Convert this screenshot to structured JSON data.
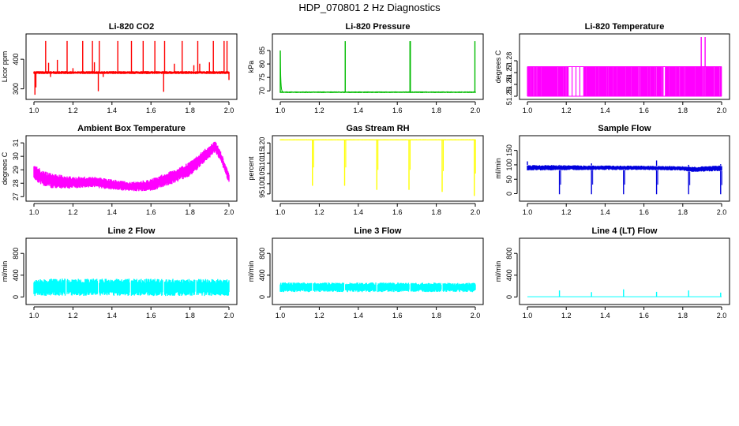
{
  "figure_title": "HDP_070801 2 Hz Diagnostics",
  "chart_data": [
    {
      "type": "line",
      "title": "Li-820 CO2",
      "ylabel": "Licor ppm",
      "color": "#ff0000",
      "xlim": [
        1.0,
        2.0
      ],
      "ylim": [
        275,
        475
      ],
      "x_ticks": [
        1.0,
        1.2,
        1.4,
        1.6,
        1.8,
        2.0
      ],
      "x_tick_labels": [
        "1.0",
        "1.2",
        "1.4",
        "1.6",
        "1.8",
        "2.0"
      ],
      "y_ticks": [
        300,
        400
      ],
      "y_tick_labels": [
        "300",
        "400"
      ],
      "baseline": 355,
      "band": [
        {
          "x": 1.0,
          "low": 350,
          "high": 360
        },
        {
          "x": 2.0,
          "low": 350,
          "high": 360
        }
      ],
      "spikes": [
        {
          "x": 1.005,
          "y": 280
        },
        {
          "x": 1.01,
          "y": 305
        },
        {
          "x": 1.06,
          "y": 462
        },
        {
          "x": 1.075,
          "y": 388
        },
        {
          "x": 1.085,
          "y": 340
        },
        {
          "x": 1.12,
          "y": 398
        },
        {
          "x": 1.17,
          "y": 462
        },
        {
          "x": 1.2,
          "y": 370
        },
        {
          "x": 1.25,
          "y": 462
        },
        {
          "x": 1.3,
          "y": 462
        },
        {
          "x": 1.31,
          "y": 390
        },
        {
          "x": 1.33,
          "y": 292
        },
        {
          "x": 1.335,
          "y": 462
        },
        {
          "x": 1.355,
          "y": 340
        },
        {
          "x": 1.43,
          "y": 462
        },
        {
          "x": 1.5,
          "y": 462
        },
        {
          "x": 1.56,
          "y": 462
        },
        {
          "x": 1.62,
          "y": 462
        },
        {
          "x": 1.665,
          "y": 290
        },
        {
          "x": 1.67,
          "y": 462
        },
        {
          "x": 1.72,
          "y": 385
        },
        {
          "x": 1.76,
          "y": 462
        },
        {
          "x": 1.82,
          "y": 380
        },
        {
          "x": 1.84,
          "y": 462
        },
        {
          "x": 1.85,
          "y": 385
        },
        {
          "x": 1.9,
          "y": 390
        },
        {
          "x": 1.92,
          "y": 462
        },
        {
          "x": 1.975,
          "y": 462
        },
        {
          "x": 1.99,
          "y": 462
        },
        {
          "x": 2.0,
          "y": 330
        }
      ]
    },
    {
      "type": "line",
      "title": "Li-820 Pressure",
      "ylabel": "kPa",
      "color": "#00bb00",
      "xlim": [
        1.0,
        2.0
      ],
      "ylim": [
        68,
        90
      ],
      "x_ticks": [
        1.0,
        1.2,
        1.4,
        1.6,
        1.8,
        2.0
      ],
      "x_tick_labels": [
        "1.0",
        "1.2",
        "1.4",
        "1.6",
        "1.8",
        "2.0"
      ],
      "y_ticks": [
        70,
        75,
        80,
        85
      ],
      "y_tick_labels": [
        "70",
        "75",
        "80",
        "85"
      ],
      "baseline": 69.5,
      "band": [
        {
          "x": 1.0,
          "low": 69.2,
          "high": 69.8
        },
        {
          "x": 2.0,
          "low": 69.2,
          "high": 69.8
        }
      ],
      "spikes": [
        {
          "x": 1.0,
          "y": 85
        },
        {
          "x": 1.333,
          "y": 88.5
        },
        {
          "x": 1.665,
          "y": 88.5
        },
        {
          "x": 1.667,
          "y": 88.5
        },
        {
          "x": 1.998,
          "y": 88.5
        }
      ],
      "decays": [
        {
          "x": 1.0,
          "from": 85,
          "to": 69.6,
          "width": 0.012
        }
      ]
    },
    {
      "type": "line",
      "title": "Li-820 Temperature",
      "ylabel": "degrees C",
      "color": "#ff00ff",
      "xlim": [
        1.0,
        2.0
      ],
      "ylim": [
        51.25,
        51.3
      ],
      "x_ticks": [
        1.0,
        1.2,
        1.4,
        1.6,
        1.8,
        2.0
      ],
      "x_tick_labels": [
        "1.0",
        "1.2",
        "1.4",
        "1.6",
        "1.8",
        "2.0"
      ],
      "y_ticks": [
        51.25,
        51.26,
        51.27,
        51.28
      ],
      "y_tick_labels": [
        "51.25",
        "51.26",
        "51.27",
        "51.28"
      ],
      "levels": [
        51.25,
        51.275
      ],
      "dense_intervals": [
        [
          1.0,
          1.21
        ],
        [
          1.29,
          1.7
        ],
        [
          1.71,
          2.0
        ]
      ],
      "sparse_interval": [
        1.21,
        1.29
      ],
      "high_spikes": [
        {
          "x": 1.895,
          "y": 51.3
        },
        {
          "x": 1.915,
          "y": 51.3
        }
      ]
    },
    {
      "type": "line",
      "title": "Ambient Box Temperature",
      "ylabel": "degrees C",
      "color": "#ff00ff",
      "xlim": [
        1.0,
        2.0
      ],
      "ylim": [
        26.9,
        31.3
      ],
      "x_ticks": [
        1.0,
        1.2,
        1.4,
        1.6,
        1.8,
        2.0
      ],
      "x_tick_labels": [
        "1.0",
        "1.2",
        "1.4",
        "1.6",
        "1.8",
        "2.0"
      ],
      "y_ticks": [
        27,
        28,
        29,
        30,
        31
      ],
      "y_tick_labels": [
        "27",
        "28",
        "29",
        "30",
        "31"
      ],
      "band": [
        {
          "x": 1.0,
          "low": 28.2,
          "high": 29.4
        },
        {
          "x": 1.05,
          "low": 27.8,
          "high": 28.9
        },
        {
          "x": 1.1,
          "low": 27.6,
          "high": 28.7
        },
        {
          "x": 1.2,
          "low": 27.6,
          "high": 28.5
        },
        {
          "x": 1.3,
          "low": 27.7,
          "high": 28.5
        },
        {
          "x": 1.4,
          "low": 27.5,
          "high": 28.3
        },
        {
          "x": 1.5,
          "low": 27.4,
          "high": 28.1
        },
        {
          "x": 1.6,
          "low": 27.4,
          "high": 28.3
        },
        {
          "x": 1.7,
          "low": 27.9,
          "high": 28.9
        },
        {
          "x": 1.8,
          "low": 28.5,
          "high": 29.6
        },
        {
          "x": 1.88,
          "low": 29.6,
          "high": 30.6
        },
        {
          "x": 1.93,
          "low": 30.3,
          "high": 31.2
        },
        {
          "x": 1.96,
          "low": 29.5,
          "high": 30.3
        },
        {
          "x": 2.0,
          "low": 28.0,
          "high": 28.8
        }
      ]
    },
    {
      "type": "line",
      "title": "Gas Stream RH",
      "ylabel": "percent",
      "color": "#ffff00",
      "xlim": [
        1.0,
        2.0
      ],
      "ylim": [
        93,
        122
      ],
      "x_ticks": [
        1.0,
        1.2,
        1.4,
        1.6,
        1.8,
        2.0
      ],
      "x_tick_labels": [
        "1.0",
        "1.2",
        "1.4",
        "1.6",
        "1.8",
        "2.0"
      ],
      "y_ticks": [
        95,
        100,
        105,
        110,
        115,
        120
      ],
      "y_tick_labels": [
        "95",
        "100",
        "105",
        "110",
        "115",
        "120"
      ],
      "baseline": 121.5,
      "band": [
        {
          "x": 1.0,
          "low": 121.3,
          "high": 121.8
        },
        {
          "x": 2.0,
          "low": 121.3,
          "high": 121.8
        }
      ],
      "dips": [
        {
          "x": 1.165,
          "y": 99
        },
        {
          "x": 1.33,
          "y": 99
        },
        {
          "x": 1.495,
          "y": 97
        },
        {
          "x": 1.66,
          "y": 97
        },
        {
          "x": 1.83,
          "y": 96
        },
        {
          "x": 1.995,
          "y": 94
        }
      ]
    },
    {
      "type": "line",
      "title": "Sample Flow",
      "ylabel": "ml/min",
      "color": "#0000dd",
      "xlim": [
        1.0,
        2.0
      ],
      "ylim": [
        -15,
        190
      ],
      "x_ticks": [
        1.0,
        1.2,
        1.4,
        1.6,
        1.8,
        2.0
      ],
      "x_tick_labels": [
        "1.0",
        "1.2",
        "1.4",
        "1.6",
        "1.8",
        "2.0"
      ],
      "y_ticks": [
        0,
        50,
        100,
        150
      ],
      "y_tick_labels": [
        "0",
        "50",
        "100",
        "150"
      ],
      "band": [
        {
          "x": 1.0,
          "low": 80,
          "high": 100
        },
        {
          "x": 1.3,
          "low": 82,
          "high": 98
        },
        {
          "x": 1.6,
          "low": 82,
          "high": 97
        },
        {
          "x": 1.8,
          "low": 80,
          "high": 95
        },
        {
          "x": 1.85,
          "low": 75,
          "high": 93
        },
        {
          "x": 2.0,
          "low": 78,
          "high": 98
        }
      ],
      "dips": [
        {
          "x": 1.165,
          "y": -2
        },
        {
          "x": 1.33,
          "y": -2
        },
        {
          "x": 1.495,
          "y": -2
        },
        {
          "x": 1.665,
          "y": -2
        },
        {
          "x": 1.83,
          "y": -2
        },
        {
          "x": 1.995,
          "y": -2
        }
      ],
      "spikes": [
        {
          "x": 1.0,
          "y": 112
        },
        {
          "x": 1.165,
          "y": 100
        },
        {
          "x": 1.33,
          "y": 105
        },
        {
          "x": 1.665,
          "y": 115
        },
        {
          "x": 1.83,
          "y": 100
        },
        {
          "x": 1.995,
          "y": 102
        }
      ]
    },
    {
      "type": "line",
      "title": "Line 2 Flow",
      "ylabel": "ml/min",
      "color": "#00ffff",
      "xlim": [
        1.0,
        2.0
      ],
      "ylim": [
        -80,
        1020
      ],
      "x_ticks": [
        1.0,
        1.2,
        1.4,
        1.6,
        1.8,
        2.0
      ],
      "x_tick_labels": [
        "1.0",
        "1.2",
        "1.4",
        "1.6",
        "1.8",
        "2.0"
      ],
      "y_ticks": [
        0,
        400,
        800
      ],
      "y_tick_labels": [
        "0",
        "400",
        "800"
      ],
      "band": [
        {
          "x": 1.0,
          "low": 20,
          "high": 340
        },
        {
          "x": 2.0,
          "low": 20,
          "high": 330
        }
      ],
      "gaps": [
        1.165,
        1.33,
        1.495,
        1.665,
        1.83
      ]
    },
    {
      "type": "line",
      "title": "Line 3 Flow",
      "ylabel": "ml/min",
      "color": "#00ffff",
      "xlim": [
        1.0,
        2.0
      ],
      "ylim": [
        -80,
        1020
      ],
      "x_ticks": [
        1.0,
        1.2,
        1.4,
        1.6,
        1.8,
        2.0
      ],
      "x_tick_labels": [
        "1.0",
        "1.2",
        "1.4",
        "1.6",
        "1.8",
        "2.0"
      ],
      "y_ticks": [
        0,
        400,
        800
      ],
      "y_tick_labels": [
        "0",
        "400",
        "800"
      ],
      "band": [
        {
          "x": 1.0,
          "low": 90,
          "high": 270
        },
        {
          "x": 2.0,
          "low": 90,
          "high": 260
        }
      ],
      "gaps": [
        1.165,
        1.33,
        1.495,
        1.665,
        1.83
      ]
    },
    {
      "type": "line",
      "title": "Line 4 (LT) Flow",
      "ylabel": "ml/min",
      "color": "#00ffff",
      "xlim": [
        1.0,
        2.0
      ],
      "ylim": [
        -80,
        1020
      ],
      "x_ticks": [
        1.0,
        1.2,
        1.4,
        1.6,
        1.8,
        2.0
      ],
      "x_tick_labels": [
        "1.0",
        "1.2",
        "1.4",
        "1.6",
        "1.8",
        "2.0"
      ],
      "y_ticks": [
        0,
        400,
        800
      ],
      "y_tick_labels": [
        "0",
        "400",
        "800"
      ],
      "baseline": 5,
      "spikes": [
        {
          "x": 1.165,
          "y": 120
        },
        {
          "x": 1.33,
          "y": 90
        },
        {
          "x": 1.495,
          "y": 140
        },
        {
          "x": 1.665,
          "y": 95
        },
        {
          "x": 1.83,
          "y": 120
        },
        {
          "x": 1.995,
          "y": 80
        }
      ]
    }
  ]
}
